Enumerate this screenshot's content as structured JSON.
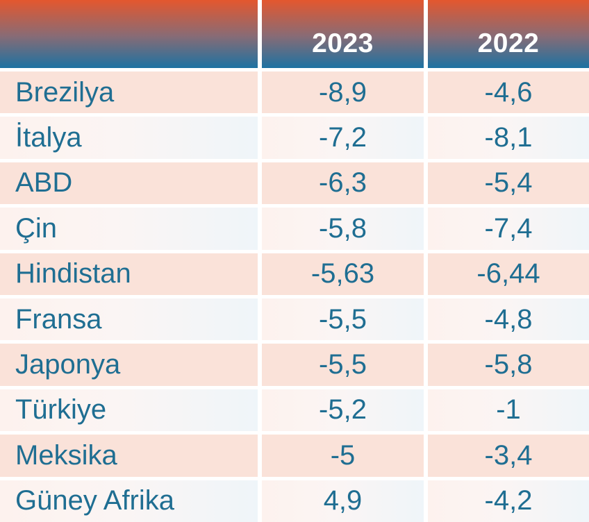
{
  "table": {
    "columns": [
      "",
      "2023",
      "2022"
    ],
    "rows": [
      {
        "label": "Brezilya",
        "v2023": "-8,9",
        "v2022": "-4,6"
      },
      {
        "label": "İtalya",
        "v2023": "-7,2",
        "v2022": "-8,1"
      },
      {
        "label": "ABD",
        "v2023": "-6,3",
        "v2022": "-5,4"
      },
      {
        "label": "Çin",
        "v2023": "-5,8",
        "v2022": "-7,4"
      },
      {
        "label": "Hindistan",
        "v2023": "-5,63",
        "v2022": "-6,44"
      },
      {
        "label": "Fransa",
        "v2023": "-5,5",
        "v2022": "-4,8"
      },
      {
        "label": "Japonya",
        "v2023": "-5,5",
        "v2022": "-5,8"
      },
      {
        "label": "Türkiye",
        "v2023": "-5,2",
        "v2022": "-1"
      },
      {
        "label": "Meksika",
        "v2023": "-5",
        "v2022": "-3,4"
      },
      {
        "label": "Güney Afrika",
        "v2023": "4,9",
        "v2022": "-4,2"
      }
    ],
    "colors": {
      "header_gradient_top": "#e4572e",
      "header_gradient_bottom": "#1d72a2",
      "row_odd_bg": "#fae2d9",
      "row_even_bg_left": "#fdf2ee",
      "row_even_bg_right": "#eff5f9",
      "text": "#1f6e92",
      "header_text": "#ffffff",
      "gutter": "#ffffff"
    }
  },
  "chart_data": {
    "type": "table",
    "title": "",
    "columns": [
      "",
      "2023",
      "2022"
    ],
    "categories": [
      "Brezilya",
      "İtalya",
      "ABD",
      "Çin",
      "Hindistan",
      "Fransa",
      "Japonya",
      "Türkiye",
      "Meksika",
      "Güney Afrika"
    ],
    "series": [
      {
        "name": "2023",
        "values": [
          -8.9,
          -7.2,
          -6.3,
          -5.8,
          -5.63,
          -5.5,
          -5.5,
          -5.2,
          -5,
          4.9
        ]
      },
      {
        "name": "2022",
        "values": [
          -4.6,
          -8.1,
          -5.4,
          -7.4,
          -6.44,
          -4.8,
          -5.8,
          -1,
          -3.4,
          -4.2
        ]
      }
    ],
    "decimal_separator": ",",
    "layout": {
      "header_position": "top",
      "alternating_rows": true
    }
  }
}
